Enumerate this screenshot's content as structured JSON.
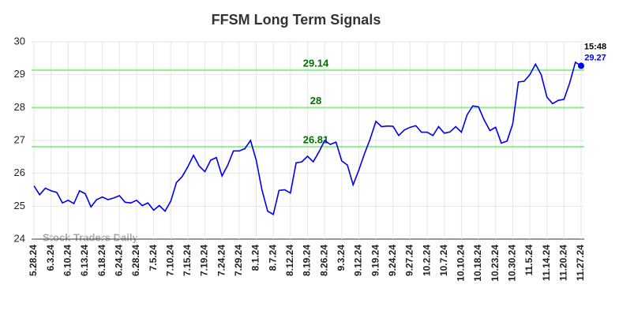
{
  "chart_data": {
    "type": "line",
    "title": "FFSM Long Term Signals",
    "categories": [
      "5.28.24",
      null,
      null,
      "6.3.24",
      null,
      null,
      "6.10.24",
      null,
      null,
      "6.13.24",
      null,
      null,
      "6.18.24",
      null,
      null,
      "6.24.24",
      null,
      null,
      "6.28.24",
      null,
      null,
      "7.5.24",
      null,
      null,
      "7.10.24",
      null,
      null,
      "7.15.24",
      null,
      null,
      "7.19.24",
      null,
      null,
      "7.24.24",
      null,
      null,
      "7.29.24",
      null,
      null,
      "8.1.24",
      null,
      null,
      "8.7.24",
      null,
      null,
      "8.12.24",
      null,
      null,
      "8.19.24",
      null,
      null,
      "8.26.24",
      null,
      null,
      "9.3.24",
      null,
      null,
      "9.12.24",
      null,
      null,
      "9.19.24",
      null,
      null,
      "9.24.24",
      null,
      null,
      "9.27.24",
      null,
      null,
      "10.2.24",
      null,
      null,
      "10.7.24",
      null,
      null,
      "10.10.24",
      null,
      null,
      "10.18.24",
      null,
      null,
      "10.23.24",
      null,
      null,
      "10.30.24",
      null,
      null,
      "11.5.24",
      null,
      null,
      "11.14.24",
      null,
      null,
      "11.20.24",
      null,
      null,
      "11.27.24"
    ],
    "series": [
      {
        "name": "FFSM",
        "color": "#0000ee",
        "values": [
          25.62,
          25.35,
          25.55,
          25.47,
          25.42,
          25.1,
          25.18,
          25.08,
          25.47,
          25.38,
          24.98,
          25.2,
          25.28,
          25.2,
          25.25,
          25.32,
          25.12,
          25.1,
          25.18,
          25.02,
          25.1,
          24.88,
          25.02,
          24.85,
          25.15,
          25.72,
          25.9,
          26.2,
          26.55,
          26.22,
          26.05,
          26.4,
          26.48,
          25.92,
          26.25,
          26.68,
          26.68,
          26.75,
          27.0,
          26.4,
          25.5,
          24.85,
          24.75,
          25.48,
          25.5,
          25.4,
          26.32,
          26.35,
          26.52,
          26.35,
          26.65,
          27.0,
          26.88,
          26.95,
          26.38,
          26.25,
          25.65,
          26.1,
          26.6,
          27.05,
          27.58,
          27.42,
          27.44,
          27.43,
          27.15,
          27.32,
          27.4,
          27.45,
          27.25,
          27.25,
          27.15,
          27.42,
          27.22,
          27.26,
          27.42,
          27.25,
          27.78,
          28.05,
          28.02,
          27.62,
          27.3,
          27.4,
          26.92,
          26.98,
          27.5,
          28.78,
          28.8,
          29.0,
          29.32,
          29.0,
          28.32,
          28.12,
          28.22,
          28.25,
          28.75,
          29.38,
          29.27
        ]
      }
    ],
    "hlines": [
      {
        "value": 29.14,
        "label": "29.14"
      },
      {
        "value": 28,
        "label": "28"
      },
      {
        "value": 26.81,
        "label": "26.81"
      }
    ],
    "hline_color": "#90ee90",
    "last_point_time": "15:48",
    "watermark": "Stock Traders Daily",
    "ylim": [
      24,
      30
    ],
    "yticks": [
      24,
      25,
      26,
      27,
      28,
      29,
      30
    ],
    "grid": true
  }
}
